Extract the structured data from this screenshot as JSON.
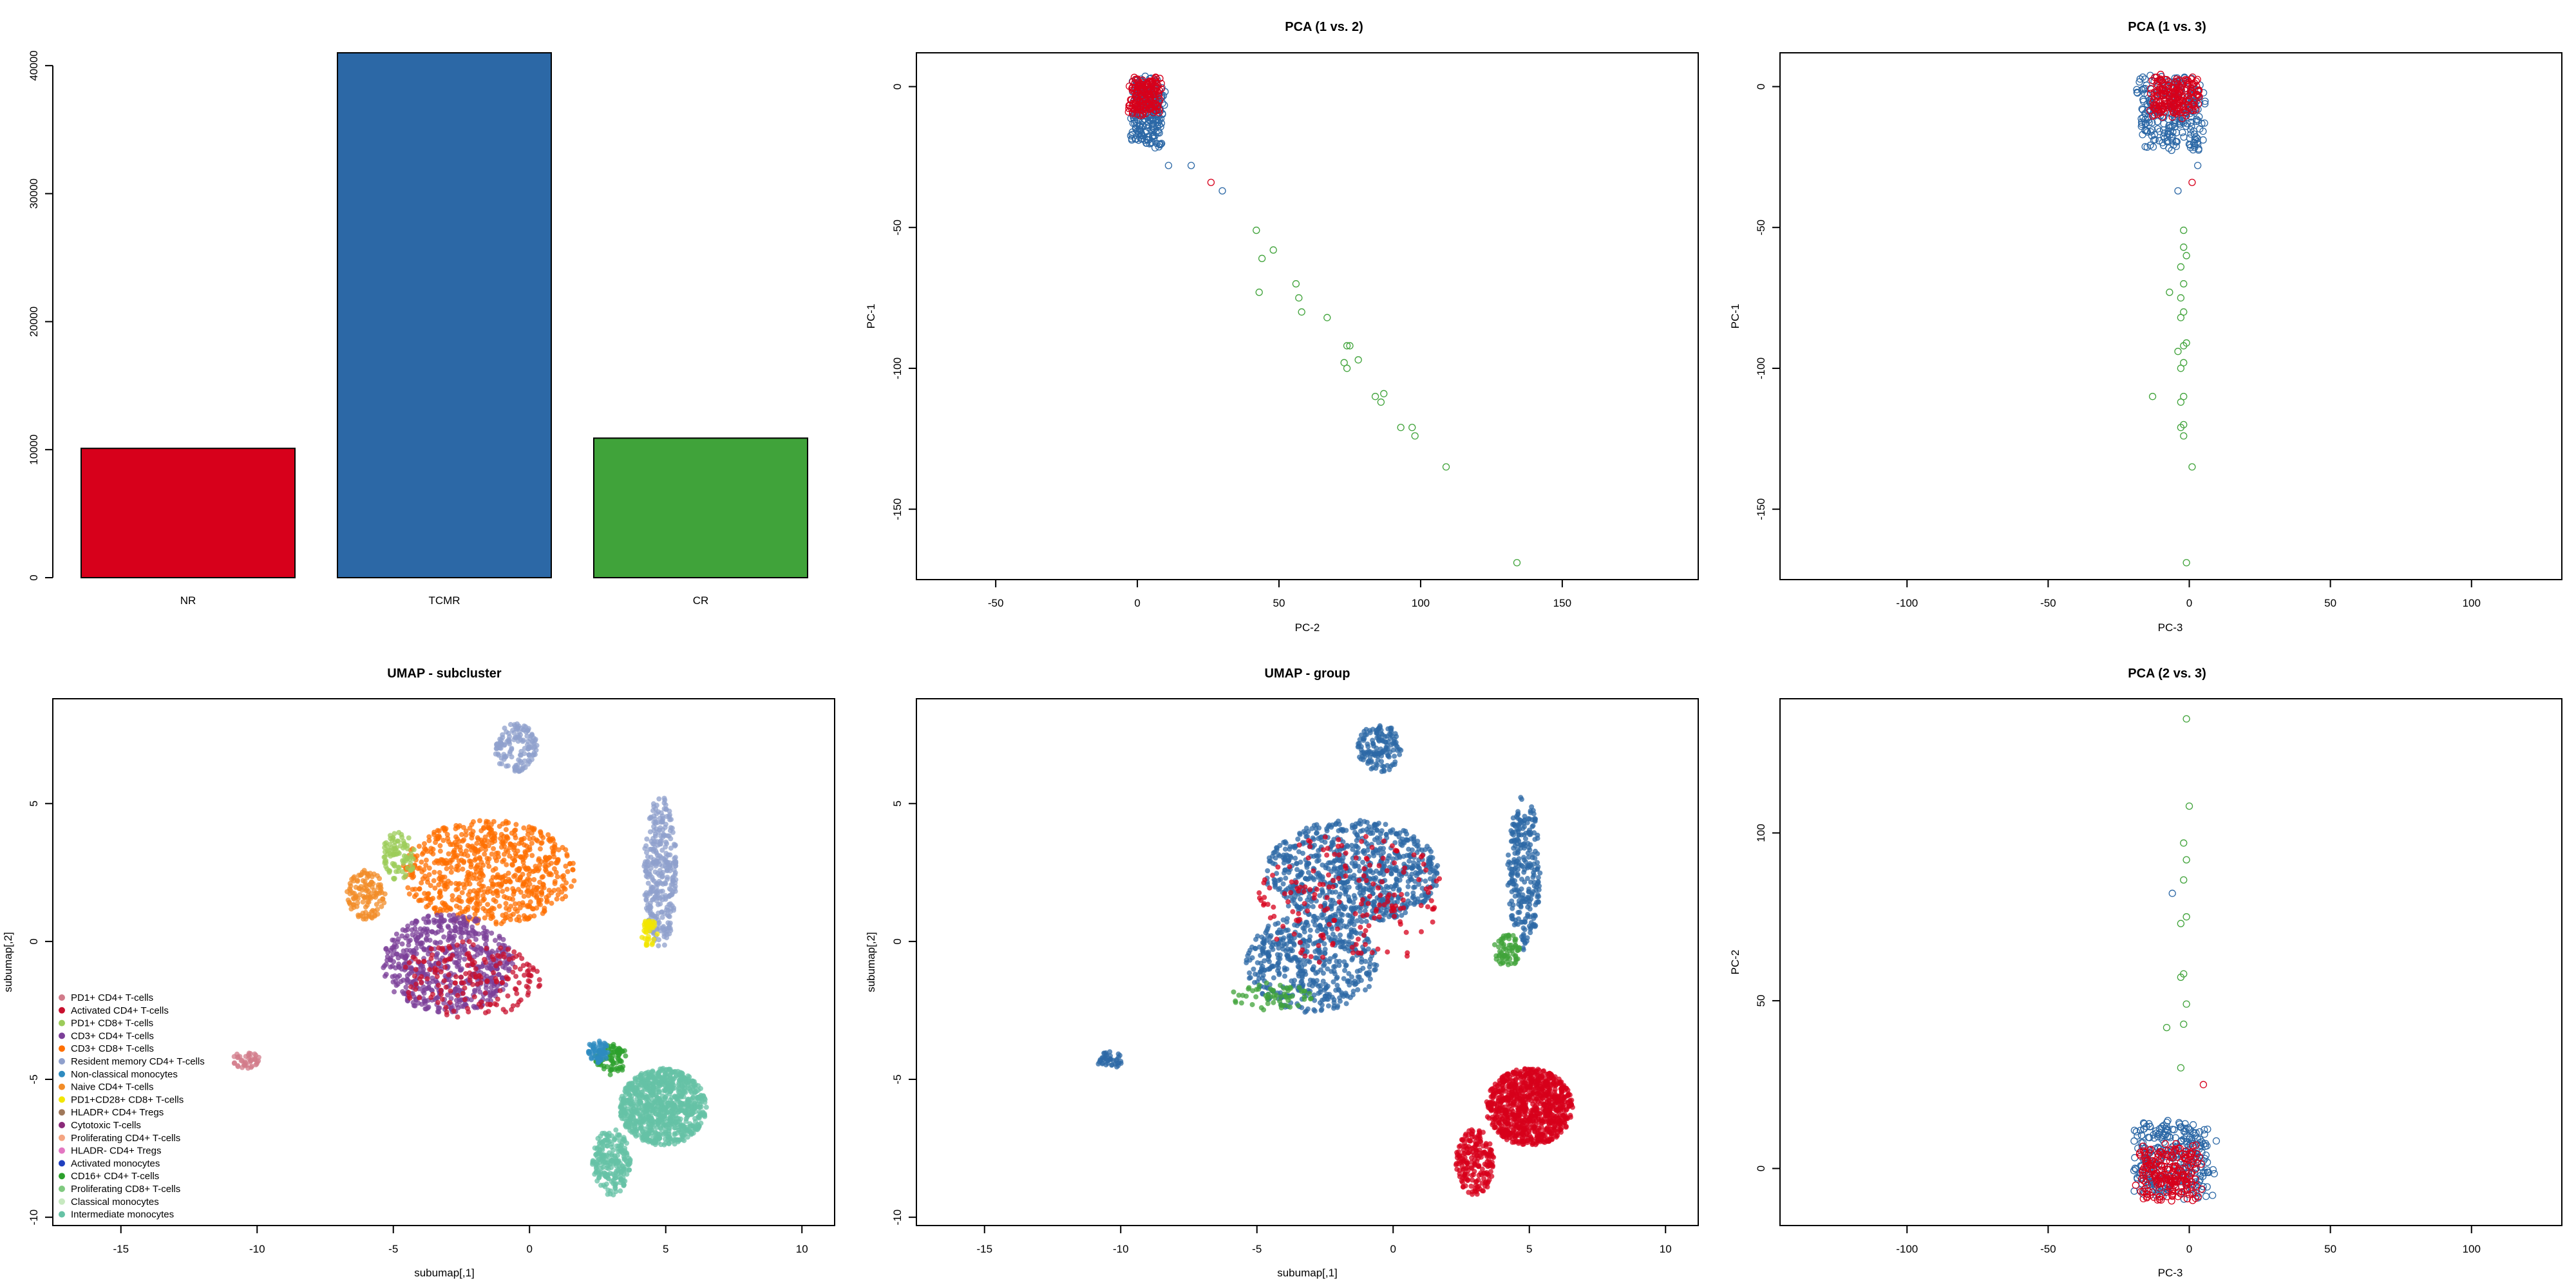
{
  "chart_data": [
    {
      "type": "bar",
      "title": "",
      "categories": [
        "NR",
        "TCMR",
        "CR"
      ],
      "values": [
        10100,
        41000,
        10900
      ],
      "colors": [
        "#d7001b",
        "#2c68a6",
        "#40a33a"
      ],
      "ylim": [
        0,
        41000
      ],
      "yticks": [
        0,
        10000,
        20000,
        30000,
        40000
      ],
      "xlabel": "",
      "ylabel": ""
    },
    {
      "type": "scatter",
      "title": "PCA (1 vs. 2)",
      "xlabel": "PC-2",
      "ylabel": "PC-1",
      "xlim": [
        -78,
        198
      ],
      "ylim": [
        -175,
        12
      ],
      "xticks": [
        -50,
        0,
        50,
        100,
        150
      ],
      "yticks": [
        0,
        -50,
        -100,
        -150
      ],
      "marker": "open-circle",
      "clusters": [
        {
          "group": "TCMR",
          "color": "#2c68a6",
          "x": [
            -3,
            10
          ],
          "y": [
            -23,
            5
          ],
          "n": 260
        },
        {
          "group": "NR",
          "color": "#d7001b",
          "x": [
            -4,
            9
          ],
          "y": [
            -11,
            4
          ],
          "n": 170
        }
      ],
      "points": [
        {
          "group": "CR",
          "color": "#40a33a",
          "x": 42,
          "y": -51
        },
        {
          "group": "CR",
          "color": "#40a33a",
          "x": 44,
          "y": -61
        },
        {
          "group": "CR",
          "color": "#40a33a",
          "x": 48,
          "y": -58
        },
        {
          "group": "CR",
          "color": "#40a33a",
          "x": 43,
          "y": -73
        },
        {
          "group": "CR",
          "color": "#40a33a",
          "x": 56,
          "y": -70
        },
        {
          "group": "CR",
          "color": "#40a33a",
          "x": 57,
          "y": -75
        },
        {
          "group": "CR",
          "color": "#40a33a",
          "x": 58,
          "y": -80
        },
        {
          "group": "CR",
          "color": "#40a33a",
          "x": 67,
          "y": -82
        },
        {
          "group": "CR",
          "color": "#40a33a",
          "x": 74,
          "y": -92
        },
        {
          "group": "CR",
          "color": "#40a33a",
          "x": 75,
          "y": -92
        },
        {
          "group": "CR",
          "color": "#40a33a",
          "x": 73,
          "y": -98
        },
        {
          "group": "CR",
          "color": "#40a33a",
          "x": 78,
          "y": -97
        },
        {
          "group": "CR",
          "color": "#40a33a",
          "x": 74,
          "y": -100
        },
        {
          "group": "CR",
          "color": "#40a33a",
          "x": 84,
          "y": -110
        },
        {
          "group": "CR",
          "color": "#40a33a",
          "x": 87,
          "y": -109
        },
        {
          "group": "CR",
          "color": "#40a33a",
          "x": 86,
          "y": -112
        },
        {
          "group": "CR",
          "color": "#40a33a",
          "x": 93,
          "y": -121
        },
        {
          "group": "CR",
          "color": "#40a33a",
          "x": 97,
          "y": -121
        },
        {
          "group": "CR",
          "color": "#40a33a",
          "x": 98,
          "y": -124
        },
        {
          "group": "CR",
          "color": "#40a33a",
          "x": 109,
          "y": -135
        },
        {
          "group": "CR",
          "color": "#40a33a",
          "x": 134,
          "y": -169
        },
        {
          "group": "NR",
          "color": "#d7001b",
          "x": 26,
          "y": -34
        },
        {
          "group": "TCMR",
          "color": "#2c68a6",
          "x": 30,
          "y": -37
        },
        {
          "group": "TCMR",
          "color": "#2c68a6",
          "x": 19,
          "y": -28
        },
        {
          "group": "TCMR",
          "color": "#2c68a6",
          "x": 11,
          "y": -28
        }
      ]
    },
    {
      "type": "scatter",
      "title": "PCA (1 vs. 3)",
      "xlabel": "PC-3",
      "ylabel": "PC-1",
      "xlim": [
        -145,
        132
      ],
      "ylim": [
        -175,
        12
      ],
      "xticks": [
        -100,
        -50,
        0,
        50,
        100
      ],
      "yticks": [
        0,
        -50,
        -100,
        -150
      ],
      "marker": "open-circle",
      "clusters": [
        {
          "group": "TCMR",
          "color": "#2c68a6",
          "x": [
            -20,
            7
          ],
          "y": [
            -24,
            5
          ],
          "n": 260
        },
        {
          "group": "NR",
          "color": "#d7001b",
          "x": [
            -15,
            5
          ],
          "y": [
            -12,
            5
          ],
          "n": 190
        }
      ],
      "points": [
        {
          "group": "CR",
          "color": "#40a33a",
          "x": -2,
          "y": -51
        },
        {
          "group": "CR",
          "color": "#40a33a",
          "x": -2,
          "y": -57
        },
        {
          "group": "CR",
          "color": "#40a33a",
          "x": -1,
          "y": -60
        },
        {
          "group": "CR",
          "color": "#40a33a",
          "x": -3,
          "y": -64
        },
        {
          "group": "CR",
          "color": "#40a33a",
          "x": -2,
          "y": -70
        },
        {
          "group": "CR",
          "color": "#40a33a",
          "x": -3,
          "y": -75
        },
        {
          "group": "CR",
          "color": "#40a33a",
          "x": -7,
          "y": -73
        },
        {
          "group": "CR",
          "color": "#40a33a",
          "x": -2,
          "y": -80
        },
        {
          "group": "CR",
          "color": "#40a33a",
          "x": -3,
          "y": -82
        },
        {
          "group": "CR",
          "color": "#40a33a",
          "x": -1,
          "y": -91
        },
        {
          "group": "CR",
          "color": "#40a33a",
          "x": -2,
          "y": -92
        },
        {
          "group": "CR",
          "color": "#40a33a",
          "x": -4,
          "y": -94
        },
        {
          "group": "CR",
          "color": "#40a33a",
          "x": -2,
          "y": -98
        },
        {
          "group": "CR",
          "color": "#40a33a",
          "x": -3,
          "y": -100
        },
        {
          "group": "CR",
          "color": "#40a33a",
          "x": -13,
          "y": -110
        },
        {
          "group": "CR",
          "color": "#40a33a",
          "x": -2,
          "y": -110
        },
        {
          "group": "CR",
          "color": "#40a33a",
          "x": -3,
          "y": -112
        },
        {
          "group": "CR",
          "color": "#40a33a",
          "x": -2,
          "y": -120
        },
        {
          "group": "CR",
          "color": "#40a33a",
          "x": -3,
          "y": -121
        },
        {
          "group": "CR",
          "color": "#40a33a",
          "x": -2,
          "y": -124
        },
        {
          "group": "CR",
          "color": "#40a33a",
          "x": 1,
          "y": -135
        },
        {
          "group": "CR",
          "color": "#40a33a",
          "x": -1,
          "y": -169
        },
        {
          "group": "NR",
          "color": "#d7001b",
          "x": 1,
          "y": -34
        },
        {
          "group": "TCMR",
          "color": "#2c68a6",
          "x": -4,
          "y": -37
        },
        {
          "group": "TCMR",
          "color": "#2c68a6",
          "x": 3,
          "y": -28
        }
      ]
    },
    {
      "type": "scatter",
      "title": "UMAP - subcluster",
      "xlabel": "subumap[,1]",
      "ylabel": "subumap[,2]",
      "xlim": [
        -17.5,
        11.2
      ],
      "ylim": [
        -10.3,
        8.8
      ],
      "xticks": [
        -15,
        -10,
        -5,
        0,
        5,
        10
      ],
      "yticks": [
        -10,
        -5,
        0,
        5
      ],
      "marker": "filled-circle",
      "legend": {
        "position": "bottom-left",
        "entries": [
          {
            "label": "PD1+ CD4+ T-cells",
            "color": "#d17b8a"
          },
          {
            "label": "Activated CD4+ T-cells",
            "color": "#c8102e"
          },
          {
            "label": "PD1+ CD8+ T-cells",
            "color": "#9ccc5a"
          },
          {
            "label": "CD3+ CD4+ T-cells",
            "color": "#7b3f98"
          },
          {
            "label": "CD3+ CD8+ T-cells",
            "color": "#ff6f00"
          },
          {
            "label": "Resident memory CD4+ T-cells",
            "color": "#8fa0cc"
          },
          {
            "label": "Non-classical monocytes",
            "color": "#2e8bc0"
          },
          {
            "label": "Naive CD4+ T-cells",
            "color": "#f28c28"
          },
          {
            "label": "PD1+CD28+ CD8+ T-cells",
            "color": "#f2e600"
          },
          {
            "label": "HLADR+ CD4+ Tregs",
            "color": "#a0785a"
          },
          {
            "label": "Cytotoxic T-cells",
            "color": "#8b2a7a"
          },
          {
            "label": "Proliferating CD4+ T-cells",
            "color": "#f4a582"
          },
          {
            "label": "HLADR- CD4+ Tregs",
            "color": "#e377c2"
          },
          {
            "label": "Activated monocytes",
            "color": "#1f3fbf"
          },
          {
            "label": "CD16+ CD4+ T-cells",
            "color": "#2ca02c"
          },
          {
            "label": "Proliferating CD8+ T-cells",
            "color": "#7fc97f"
          },
          {
            "label": "Classical monocytes",
            "color": "#c7e9c0"
          },
          {
            "label": "Intermediate monocytes",
            "color": "#66c2a5"
          }
        ]
      },
      "regions": [
        {
          "cluster": "CD3+ CD8+ T-cells",
          "color": "#ff6f00",
          "cx": -1.5,
          "cy": 2.5,
          "rx": 3.2,
          "ry": 1.9,
          "n": 700
        },
        {
          "cluster": "CD3+ CD4+ T-cells",
          "color": "#7b3f98",
          "cx": -3.0,
          "cy": -0.8,
          "rx": 2.4,
          "ry": 1.8,
          "n": 600
        },
        {
          "cluster": "Activated CD4+ T-cells",
          "color": "#c8102e",
          "cx": -2.2,
          "cy": -1.4,
          "rx": 2.6,
          "ry": 1.4,
          "n": 180
        },
        {
          "cluster": "PD1+ CD8+ T-cells",
          "color": "#9ccc5a",
          "cx": -4.8,
          "cy": 3.1,
          "rx": 0.6,
          "ry": 0.9,
          "n": 90
        },
        {
          "cluster": "Naive CD4+ T-cells",
          "color": "#f28c28",
          "cx": -6.0,
          "cy": 1.7,
          "rx": 0.7,
          "ry": 0.9,
          "n": 120
        },
        {
          "cluster": "Resident memory CD4+ T-cells",
          "color": "#8fa0cc",
          "cx": 4.8,
          "cy": 2.5,
          "rx": 0.6,
          "ry": 2.8,
          "n": 320
        },
        {
          "cluster": "Resident memory CD4+ T-cells",
          "color": "#8fa0cc",
          "cx": -0.5,
          "cy": 7.0,
          "rx": 0.8,
          "ry": 0.9,
          "n": 140
        },
        {
          "cluster": "CD16+ CD4+ T-cells",
          "color": "#2ca02c",
          "cx": 3.0,
          "cy": -4.3,
          "rx": 0.6,
          "ry": 0.6,
          "n": 80
        },
        {
          "cluster": "Intermediate monocytes",
          "color": "#66c2a5",
          "cx": 4.9,
          "cy": -6.0,
          "rx": 1.6,
          "ry": 1.4,
          "n": 900
        },
        {
          "cluster": "Intermediate monocytes",
          "color": "#66c2a5",
          "cx": 3.0,
          "cy": -8.0,
          "rx": 0.7,
          "ry": 1.2,
          "n": 220
        },
        {
          "cluster": "Non-classical monocytes",
          "color": "#2e8bc0",
          "cx": 2.5,
          "cy": -4.0,
          "rx": 0.4,
          "ry": 0.4,
          "n": 60
        },
        {
          "cluster": "PD1+CD28+ CD8+ T-cells",
          "color": "#f2e600",
          "cx": 4.4,
          "cy": 0.3,
          "rx": 0.3,
          "ry": 0.5,
          "n": 40
        },
        {
          "cluster": "PD1+ CD4+ T-cells",
          "color": "#d17b8a",
          "cx": -10.4,
          "cy": -4.3,
          "rx": 0.5,
          "ry": 0.3,
          "n": 40
        }
      ]
    },
    {
      "type": "scatter",
      "title": "UMAP - group",
      "xlabel": "subumap[,1]",
      "ylabel": "subumap[,2]",
      "xlim": [
        -17.5,
        11.2
      ],
      "ylim": [
        -10.3,
        8.8
      ],
      "xticks": [
        -15,
        -10,
        -5,
        0,
        5,
        10
      ],
      "yticks": [
        -10,
        -5,
        0,
        5
      ],
      "marker": "filled-circle",
      "groups": [
        {
          "name": "NR",
          "color": "#d7001b"
        },
        {
          "name": "TCMR",
          "color": "#2c68a6"
        },
        {
          "name": "CR",
          "color": "#40a33a"
        }
      ],
      "regions": [
        {
          "group": "TCMR",
          "color": "#2c68a6",
          "cx": -1.5,
          "cy": 2.5,
          "rx": 3.2,
          "ry": 1.9,
          "n": 800
        },
        {
          "group": "TCMR",
          "color": "#2c68a6",
          "cx": -3.0,
          "cy": -0.8,
          "rx": 2.4,
          "ry": 1.8,
          "n": 500
        },
        {
          "group": "TCMR",
          "color": "#2c68a6",
          "cx": 4.8,
          "cy": 2.5,
          "rx": 0.6,
          "ry": 2.8,
          "n": 260
        },
        {
          "group": "TCMR",
          "color": "#2c68a6",
          "cx": -0.5,
          "cy": 7.0,
          "rx": 0.8,
          "ry": 0.9,
          "n": 140
        },
        {
          "group": "NR",
          "color": "#d7001b",
          "cx": -1.5,
          "cy": 1.5,
          "rx": 3.5,
          "ry": 2.5,
          "n": 180
        },
        {
          "group": "NR",
          "color": "#d7001b",
          "cx": 5.0,
          "cy": -6.0,
          "rx": 1.6,
          "ry": 1.4,
          "n": 900
        },
        {
          "group": "NR",
          "color": "#d7001b",
          "cx": 3.0,
          "cy": -8.0,
          "rx": 0.7,
          "ry": 1.2,
          "n": 200
        },
        {
          "group": "CR",
          "color": "#40a33a",
          "cx": 4.2,
          "cy": -0.3,
          "rx": 0.5,
          "ry": 0.6,
          "n": 70
        },
        {
          "group": "CR",
          "color": "#40a33a",
          "cx": -4.5,
          "cy": -2.0,
          "rx": 1.5,
          "ry": 0.5,
          "n": 60
        },
        {
          "group": "TCMR",
          "color": "#2c68a6",
          "cx": -10.4,
          "cy": -4.3,
          "rx": 0.5,
          "ry": 0.3,
          "n": 40
        }
      ]
    },
    {
      "type": "scatter",
      "title": "PCA (2 vs. 3)",
      "xlabel": "PC-3",
      "ylabel": "PC-2",
      "xlim": [
        -145,
        132
      ],
      "ylim": [
        -17,
        140
      ],
      "xticks": [
        -100,
        -50,
        0,
        50,
        100
      ],
      "yticks": [
        0,
        50,
        100
      ],
      "marker": "open-circle",
      "clusters": [
        {
          "group": "TCMR",
          "color": "#2c68a6",
          "x": [
            -22,
            10
          ],
          "y": [
            -10,
            16
          ],
          "n": 300
        },
        {
          "group": "NR",
          "color": "#d7001b",
          "x": [
            -20,
            6
          ],
          "y": [
            -10,
            8
          ],
          "n": 220
        }
      ],
      "points": [
        {
          "group": "CR",
          "color": "#40a33a",
          "x": -2,
          "y": 97
        },
        {
          "group": "CR",
          "color": "#40a33a",
          "x": -1,
          "y": 92
        },
        {
          "group": "CR",
          "color": "#40a33a",
          "x": -2,
          "y": 86
        },
        {
          "group": "CR",
          "color": "#40a33a",
          "x": -1,
          "y": 75
        },
        {
          "group": "CR",
          "color": "#40a33a",
          "x": -3,
          "y": 73
        },
        {
          "group": "CR",
          "color": "#40a33a",
          "x": -2,
          "y": 58
        },
        {
          "group": "CR",
          "color": "#40a33a",
          "x": -3,
          "y": 57
        },
        {
          "group": "CR",
          "color": "#40a33a",
          "x": -1,
          "y": 49
        },
        {
          "group": "CR",
          "color": "#40a33a",
          "x": -2,
          "y": 43
        },
        {
          "group": "CR",
          "color": "#40a33a",
          "x": -8,
          "y": 42
        },
        {
          "group": "CR",
          "color": "#40a33a",
          "x": -3,
          "y": 30
        },
        {
          "group": "CR",
          "color": "#40a33a",
          "x": 0,
          "y": 108
        },
        {
          "group": "CR",
          "color": "#40a33a",
          "x": -1,
          "y": 134
        },
        {
          "group": "TCMR",
          "color": "#2c68a6",
          "x": -6,
          "y": 82
        },
        {
          "group": "NR",
          "color": "#d7001b",
          "x": 5,
          "y": 25
        }
      ]
    }
  ]
}
